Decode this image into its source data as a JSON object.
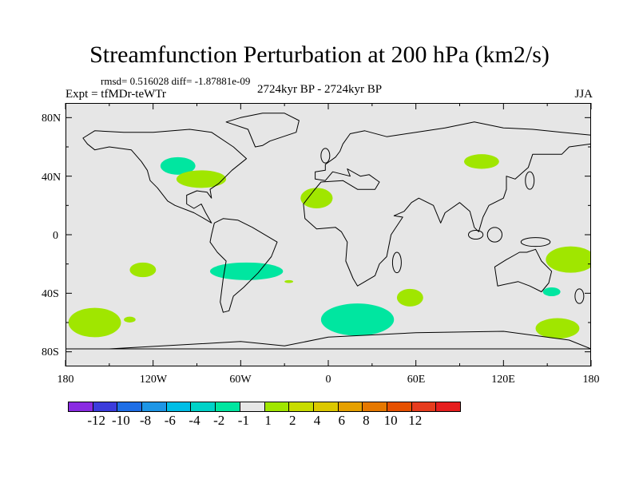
{
  "title": "Streamfunction Perturbation at 200 hPa (km2/s)",
  "stats": "rmsd= 0.516028 diff= -1.87881e-09",
  "expt": "Expt = tfMDr-teWTr",
  "period": "2724kyr BP - 2724kyr BP",
  "season": "JJA",
  "lat_labels": [
    "80N",
    "40N",
    "0",
    "40S",
    "80S"
  ],
  "lon_labels": [
    "180",
    "120W",
    "60W",
    "0",
    "60E",
    "120E",
    "180"
  ],
  "colorbar": {
    "colors": [
      "#8a2be2",
      "#3c3cdc",
      "#1e6ee6",
      "#1e96e6",
      "#00bee6",
      "#00d2c8",
      "#00e6a0",
      "#e6e6e6",
      "#a0e600",
      "#c8dc00",
      "#dcc800",
      "#e6a000",
      "#e67800",
      "#e65000",
      "#e63c1e",
      "#e61e1e"
    ],
    "labels": [
      "-12",
      "-10",
      "-8",
      "-6",
      "-4",
      "-2",
      "-1",
      "1",
      "2",
      "4",
      "6",
      "8",
      "10",
      "12"
    ]
  },
  "anomalies": [
    {
      "kind": "negative",
      "color": "#00e6a0",
      "lon": 20,
      "lat": -58,
      "rx": 25,
      "ry": 11
    },
    {
      "kind": "negative",
      "color": "#00e6a0",
      "lon": -56,
      "lat": -25,
      "rx": 25,
      "ry": 6
    },
    {
      "kind": "negative",
      "color": "#00e6a0",
      "lon": -103,
      "lat": 47,
      "rx": 12,
      "ry": 6
    },
    {
      "kind": "negative",
      "color": "#00e6a0",
      "lon": 153,
      "lat": -39,
      "rx": 6,
      "ry": 3
    },
    {
      "kind": "positive",
      "color": "#a0e600",
      "lon": -160,
      "lat": -60,
      "rx": 18,
      "ry": 10
    },
    {
      "kind": "positive",
      "color": "#a0e600",
      "lon": -127,
      "lat": -24,
      "rx": 9,
      "ry": 5
    },
    {
      "kind": "positive",
      "color": "#a0e600",
      "lon": -87,
      "lat": 38,
      "rx": 17,
      "ry": 6
    },
    {
      "kind": "positive",
      "color": "#a0e600",
      "lon": -8,
      "lat": 25,
      "rx": 11,
      "ry": 7
    },
    {
      "kind": "positive",
      "color": "#a0e600",
      "lon": 105,
      "lat": 50,
      "rx": 12,
      "ry": 5
    },
    {
      "kind": "positive",
      "color": "#a0e600",
      "lon": 166,
      "lat": -17,
      "rx": 17,
      "ry": 9
    },
    {
      "kind": "positive",
      "color": "#a0e600",
      "lon": 157,
      "lat": -64,
      "rx": 15,
      "ry": 7
    },
    {
      "kind": "positive",
      "color": "#a0e600",
      "lon": 56,
      "lat": -43,
      "rx": 9,
      "ry": 6
    },
    {
      "kind": "positive",
      "color": "#a0e600",
      "lon": -136,
      "lat": -58,
      "rx": 4,
      "ry": 2
    },
    {
      "kind": "positive",
      "color": "#a0e600",
      "lon": -27,
      "lat": -32,
      "rx": 3,
      "ry": 1
    }
  ],
  "continents": [
    {
      "name": "north-america",
      "points": [
        [
          -168,
          66
        ],
        [
          -160,
          71
        ],
        [
          -140,
          70
        ],
        [
          -120,
          70
        ],
        [
          -95,
          72
        ],
        [
          -80,
          70
        ],
        [
          -65,
          60
        ],
        [
          -56,
          52
        ],
        [
          -66,
          44
        ],
        [
          -75,
          35
        ],
        [
          -81,
          31
        ],
        [
          -80,
          25
        ],
        [
          -83,
          29
        ],
        [
          -90,
          30
        ],
        [
          -97,
          27
        ],
        [
          -97,
          21
        ],
        [
          -92,
          18
        ],
        [
          -87,
          21
        ],
        [
          -84,
          15
        ],
        [
          -80,
          8
        ],
        [
          -85,
          11
        ],
        [
          -92,
          15
        ],
        [
          -105,
          20
        ],
        [
          -110,
          23
        ],
        [
          -117,
          32
        ],
        [
          -122,
          37
        ],
        [
          -124,
          44
        ],
        [
          -128,
          50
        ],
        [
          -135,
          58
        ],
        [
          -150,
          60
        ],
        [
          -160,
          58
        ],
        [
          -165,
          62
        ]
      ]
    },
    {
      "name": "greenland",
      "points": [
        [
          -50,
          60
        ],
        [
          -45,
          61
        ],
        [
          -40,
          64
        ],
        [
          -22,
          70
        ],
        [
          -20,
          78
        ],
        [
          -30,
          83
        ],
        [
          -45,
          83
        ],
        [
          -60,
          80
        ],
        [
          -70,
          77
        ],
        [
          -55,
          72
        ]
      ]
    },
    {
      "name": "south-america",
      "points": [
        [
          -78,
          8
        ],
        [
          -72,
          11
        ],
        [
          -62,
          10
        ],
        [
          -52,
          5
        ],
        [
          -35,
          -5
        ],
        [
          -39,
          -15
        ],
        [
          -48,
          -26
        ],
        [
          -58,
          -36
        ],
        [
          -65,
          -42
        ],
        [
          -68,
          -52
        ],
        [
          -72,
          -53
        ],
        [
          -74,
          -46
        ],
        [
          -72,
          -30
        ],
        [
          -70,
          -18
        ],
        [
          -76,
          -12
        ],
        [
          -81,
          -5
        ],
        [
          -80,
          0
        ]
      ]
    },
    {
      "name": "eurasia-africa",
      "points": [
        [
          -9,
          38
        ],
        [
          -9,
          43
        ],
        [
          -2,
          44
        ],
        [
          -2,
          48
        ],
        [
          5,
          53
        ],
        [
          8,
          57
        ],
        [
          10,
          62
        ],
        [
          15,
          69
        ],
        [
          25,
          71
        ],
        [
          40,
          67
        ],
        [
          60,
          70
        ],
        [
          80,
          73
        ],
        [
          100,
          77
        ],
        [
          120,
          73
        ],
        [
          140,
          72
        ],
        [
          160,
          70
        ],
        [
          180,
          68
        ],
        [
          180,
          62
        ],
        [
          165,
          60
        ],
        [
          160,
          55
        ],
        [
          140,
          55
        ],
        [
          137,
          46
        ],
        [
          128,
          38
        ],
        [
          122,
          40
        ],
        [
          122,
          31
        ],
        [
          120,
          25
        ],
        [
          110,
          20
        ],
        [
          106,
          12
        ],
        [
          103,
          2
        ],
        [
          100,
          5
        ],
        [
          97,
          16
        ],
        [
          90,
          22
        ],
        [
          80,
          15
        ],
        [
          77,
          8
        ],
        [
          72,
          20
        ],
        [
          62,
          25
        ],
        [
          57,
          22
        ],
        [
          52,
          16
        ],
        [
          45,
          13
        ],
        [
          51,
          12
        ],
        [
          43,
          0
        ],
        [
          40,
          -15
        ],
        [
          35,
          -20
        ],
        [
          32,
          -28
        ],
        [
          20,
          -35
        ],
        [
          17,
          -30
        ],
        [
          12,
          -18
        ],
        [
          13,
          -5
        ],
        [
          9,
          2
        ],
        [
          5,
          5
        ],
        [
          -8,
          4
        ],
        [
          -16,
          11
        ],
        [
          -17,
          21
        ],
        [
          -10,
          30
        ],
        [
          -5,
          36
        ],
        [
          10,
          37
        ],
        [
          20,
          31
        ],
        [
          32,
          31
        ],
        [
          35,
          36
        ],
        [
          28,
          41
        ],
        [
          22,
          40
        ],
        [
          13,
          45
        ],
        [
          15,
          40
        ],
        [
          3,
          43
        ],
        [
          -2,
          37
        ]
      ]
    },
    {
      "name": "australia",
      "points": [
        [
          114,
          -22
        ],
        [
          122,
          -17
        ],
        [
          131,
          -12
        ],
        [
          136,
          -12
        ],
        [
          142,
          -10
        ],
        [
          146,
          -18
        ],
        [
          153,
          -25
        ],
        [
          151,
          -33
        ],
        [
          146,
          -39
        ],
        [
          138,
          -35
        ],
        [
          130,
          -32
        ],
        [
          116,
          -35
        ]
      ]
    },
    {
      "name": "antarctica",
      "points": [
        [
          -180,
          -78
        ],
        [
          -150,
          -78
        ],
        [
          -60,
          -73
        ],
        [
          -30,
          -76
        ],
        [
          0,
          -70
        ],
        [
          60,
          -67
        ],
        [
          120,
          -66
        ],
        [
          165,
          -72
        ],
        [
          180,
          -78
        ]
      ]
    }
  ],
  "islands": [
    {
      "name": "great-britain",
      "lon": -2,
      "lat": 54,
      "rx": 3,
      "ry": 5
    },
    {
      "name": "madagascar",
      "lon": 47,
      "lat": -19,
      "rx": 3,
      "ry": 7
    },
    {
      "name": "japan",
      "lon": 138,
      "lat": 37,
      "rx": 3,
      "ry": 6
    },
    {
      "name": "new-zealand",
      "lon": 172,
      "lat": -42,
      "rx": 3,
      "ry": 5
    },
    {
      "name": "new-guinea",
      "lon": 142,
      "lat": -5,
      "rx": 10,
      "ry": 3
    },
    {
      "name": "borneo",
      "lon": 114,
      "lat": 0,
      "rx": 5,
      "ry": 5
    },
    {
      "name": "sumatra",
      "lon": 101,
      "lat": 0,
      "rx": 5,
      "ry": 3
    }
  ]
}
